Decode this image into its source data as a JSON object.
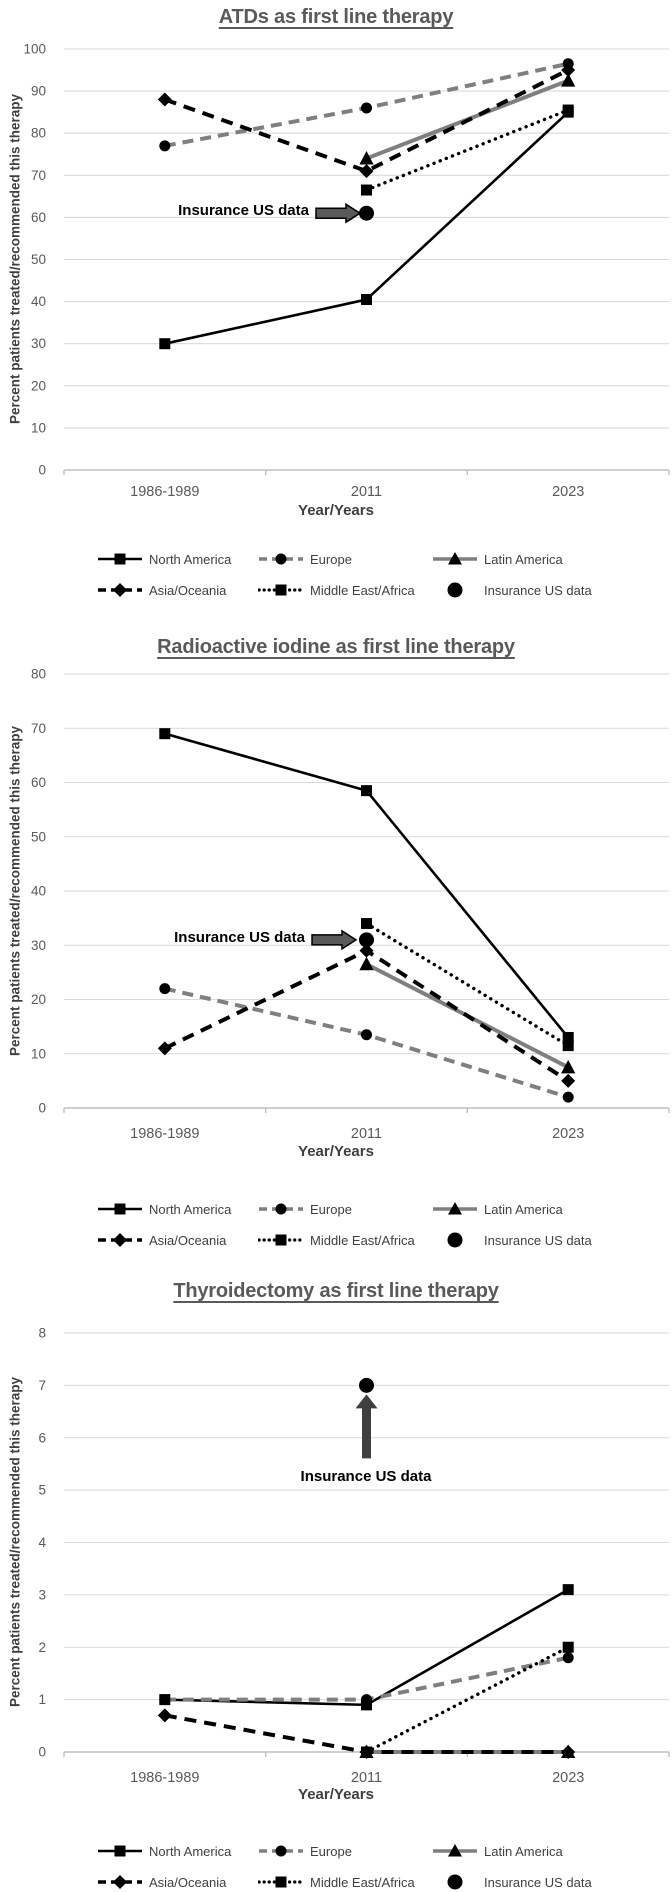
{
  "figure": {
    "background": "#ffffff",
    "colors": {
      "black_series": "#000000",
      "gray_series": "#7f7f7f",
      "gridline": "#d9d9d9",
      "axis": "#bfbfbf",
      "title_text": "#595959",
      "tick_text": "#595959",
      "axis_title_text": "#3f3f3f",
      "legend_text": "#404040",
      "annotation_arrow_fill": "#595959",
      "annotation_text": "#000000"
    }
  },
  "legend": {
    "items": [
      {
        "name": "North America",
        "line": "solid",
        "color": "#000000",
        "marker": "square"
      },
      {
        "name": "Europe",
        "line": "dashed",
        "color": "#7f7f7f",
        "marker": "circle"
      },
      {
        "name": "Latin America",
        "line": "solid",
        "color": "#7f7f7f",
        "marker": "triangle"
      },
      {
        "name": "Asia/Oceania",
        "line": "dashed",
        "color": "#000000",
        "marker": "diamond"
      },
      {
        "name": "Middle East/Africa",
        "line": "dotted",
        "color": "#000000",
        "marker": "square"
      },
      {
        "name": "Insurance US data",
        "line": "none",
        "color": "#000000",
        "marker": "big-circle"
      }
    ]
  },
  "chart_data": [
    {
      "type": "line",
      "title": "ATDs as first line therapy",
      "xlabel": "Year/Years",
      "ylabel": "Percent patients treated/recommended this therapy",
      "categories": [
        "1986-1989",
        "2011",
        "2023"
      ],
      "ylim": [
        0,
        100
      ],
      "ytick_step": 10,
      "grid": true,
      "legend_position": "bottom",
      "series": [
        {
          "name": "North America",
          "values": [
            30,
            40.5,
            85
          ]
        },
        {
          "name": "Europe",
          "values": [
            77,
            86,
            96.5
          ]
        },
        {
          "name": "Latin America",
          "values": [
            null,
            74,
            92.5
          ]
        },
        {
          "name": "Asia/Oceania",
          "values": [
            88,
            71,
            95
          ]
        },
        {
          "name": "Middle East/Africa",
          "values": [
            null,
            66.5,
            85.5
          ]
        },
        {
          "name": "Insurance US data",
          "values": [
            null,
            61,
            null
          ]
        }
      ],
      "annotation": {
        "label": "Insurance US data",
        "arrow": "right",
        "target_category": "2011",
        "target_value": 61
      }
    },
    {
      "type": "line",
      "title": "Radioactive iodine as first line therapy",
      "xlabel": "Year/Years",
      "ylabel": "Percent patients treated/recommended this therapy",
      "categories": [
        "1986-1989",
        "2011",
        "2023"
      ],
      "ylim": [
        0,
        80
      ],
      "ytick_step": 10,
      "grid": true,
      "legend_position": "bottom",
      "series": [
        {
          "name": "North America",
          "values": [
            69,
            58.5,
            13
          ]
        },
        {
          "name": "Europe",
          "values": [
            22,
            13.5,
            2
          ]
        },
        {
          "name": "Latin America",
          "values": [
            null,
            26.5,
            7.5
          ]
        },
        {
          "name": "Asia/Oceania",
          "values": [
            11,
            29,
            5
          ]
        },
        {
          "name": "Middle East/Africa",
          "values": [
            null,
            34,
            11.5
          ]
        },
        {
          "name": "Insurance US data",
          "values": [
            null,
            31,
            null
          ]
        }
      ],
      "annotation": {
        "label": "Insurance US data",
        "arrow": "right",
        "target_category": "2011",
        "target_value": 31
      }
    },
    {
      "type": "line",
      "title": "Thyroidectomy as first line therapy",
      "xlabel": "Year/Years",
      "ylabel": "Percent patients treated/recommended this therapy",
      "categories": [
        "1986-1989",
        "2011",
        "2023"
      ],
      "ylim": [
        0,
        8
      ],
      "ytick_step": 1,
      "grid": true,
      "legend_position": "bottom",
      "series": [
        {
          "name": "North America",
          "values": [
            1,
            0.9,
            3.1
          ]
        },
        {
          "name": "Europe",
          "values": [
            1,
            1,
            1.8
          ]
        },
        {
          "name": "Latin America",
          "values": [
            null,
            0,
            0
          ]
        },
        {
          "name": "Asia/Oceania",
          "values": [
            0.7,
            0,
            0
          ]
        },
        {
          "name": "Middle East/Africa",
          "values": [
            null,
            0,
            2
          ]
        },
        {
          "name": "Insurance US data",
          "values": [
            null,
            7,
            null
          ]
        }
      ],
      "annotation": {
        "label": "Insurance US data",
        "arrow": "up",
        "target_category": "2011",
        "target_value": 7
      }
    }
  ]
}
